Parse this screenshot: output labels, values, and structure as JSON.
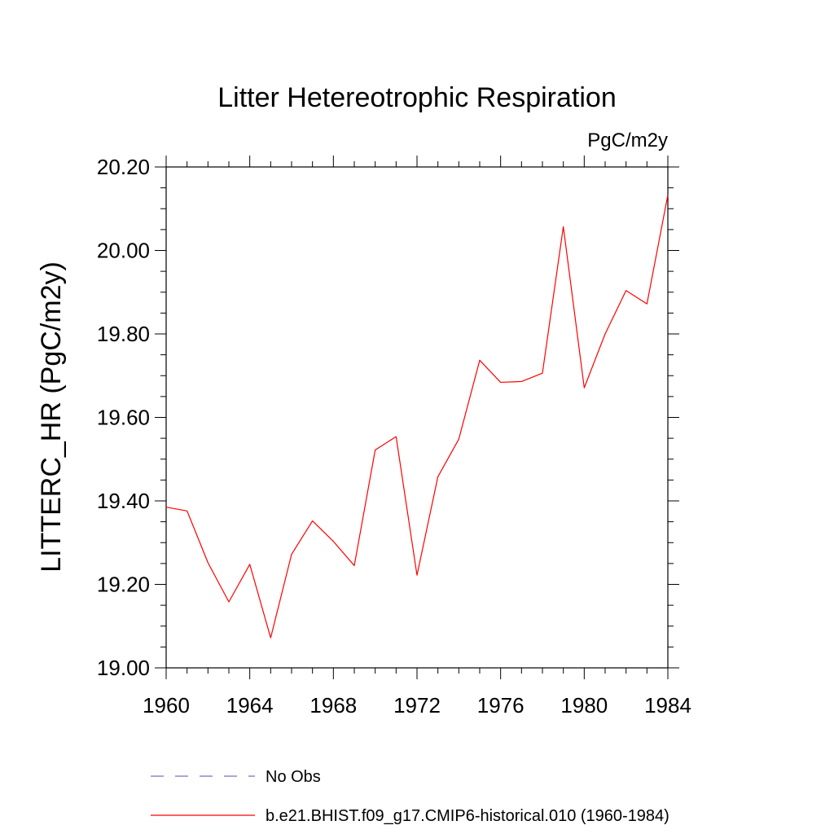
{
  "chart_data": {
    "type": "line",
    "title": "Litter Hetereotrophic Respiration",
    "units_label": "PgC/m2y",
    "ylabel": "LITTERC_HR  (PgC/m2y)",
    "xlabel": "",
    "xlim": [
      1960,
      1984
    ],
    "ylim": [
      19.0,
      20.2
    ],
    "x_ticks": [
      1960,
      1964,
      1968,
      1972,
      1976,
      1980,
      1984
    ],
    "x_tick_labels": [
      "1960",
      "1964",
      "1968",
      "1972",
      "1976",
      "1980",
      "1984"
    ],
    "y_ticks": [
      19.0,
      19.2,
      19.4,
      19.6,
      19.8,
      20.0,
      20.2
    ],
    "y_tick_labels": [
      "19.00",
      "19.20",
      "19.40",
      "19.60",
      "19.80",
      "20.00",
      "20.20"
    ],
    "grid": false,
    "legend_position": "bottom",
    "series": [
      {
        "name": "b.e21.BHIST.f09_g17.CMIP6-historical.010 (1960-1984)",
        "color": "#ff0000",
        "style": "solid",
        "x": [
          1960,
          1961,
          1962,
          1963,
          1964,
          1965,
          1966,
          1967,
          1968,
          1969,
          1970,
          1971,
          1972,
          1973,
          1974,
          1975,
          1976,
          1977,
          1978,
          1979,
          1980,
          1981,
          1982,
          1983,
          1984
        ],
        "y": [
          19.385,
          19.376,
          19.252,
          19.158,
          19.248,
          19.072,
          19.272,
          19.352,
          19.303,
          19.245,
          19.522,
          19.554,
          19.222,
          19.458,
          19.548,
          19.737,
          19.684,
          19.686,
          19.706,
          20.057,
          19.671,
          19.8,
          19.904,
          19.872,
          20.133
        ]
      }
    ],
    "legend": [
      {
        "label": "No Obs",
        "color": "#7b6fbf",
        "style": "dashed"
      },
      {
        "label": "b.e21.BHIST.f09_g17.CMIP6-historical.010 (1960-1984)",
        "color": "#ff0000",
        "style": "solid"
      }
    ]
  }
}
